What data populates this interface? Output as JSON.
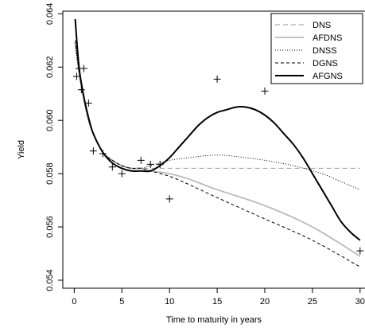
{
  "chart_data": {
    "type": "line",
    "title": "",
    "xlabel": "Time to maturity in years",
    "ylabel": "Yield",
    "xlim": [
      -1.2,
      30.6
    ],
    "ylim": [
      0.0537,
      0.0641
    ],
    "x_ticks": [
      0,
      5,
      10,
      15,
      20,
      25,
      30
    ],
    "x_tick_labels": [
      "0",
      "5",
      "10",
      "15",
      "20",
      "25",
      "30"
    ],
    "y_ticks": [
      0.054,
      0.056,
      0.058,
      0.06,
      0.062,
      0.064
    ],
    "y_tick_labels": [
      "0.054",
      "0.056",
      "0.058",
      "0.060",
      "0.062",
      "0.064"
    ],
    "grid": false,
    "legend_position": "top-right",
    "observed": {
      "marker": "plus",
      "points": [
        [
          0.25,
          0.06165
        ],
        [
          0.5,
          0.06195
        ],
        [
          0.75,
          0.06115
        ],
        [
          1.0,
          0.06195
        ],
        [
          1.5,
          0.06065
        ],
        [
          2.0,
          0.05885
        ],
        [
          3.0,
          0.05875
        ],
        [
          4.0,
          0.05825
        ],
        [
          5.0,
          0.058
        ],
        [
          7.0,
          0.0585
        ],
        [
          8.0,
          0.05835
        ],
        [
          9.0,
          0.05835
        ],
        [
          10.0,
          0.05705
        ],
        [
          15.0,
          0.06155
        ],
        [
          20.0,
          0.0611
        ],
        [
          30.0,
          0.0551
        ]
      ]
    },
    "series": [
      {
        "name": "DNS",
        "color": "#aaaaaa",
        "dash": "6,4",
        "width": 1.2,
        "x": [
          0.1,
          0.5,
          1,
          1.5,
          2,
          3,
          4,
          5,
          6,
          7,
          8,
          10,
          12,
          15,
          20,
          25,
          30
        ],
        "y": [
          0.0629,
          0.0618,
          0.0608,
          0.06,
          0.0595,
          0.0588,
          0.0585,
          0.0583,
          0.0582,
          0.0582,
          0.0582,
          0.0582,
          0.0582,
          0.0582,
          0.0582,
          0.0582,
          0.0582
        ]
      },
      {
        "name": "AFDNS",
        "color": "#bbbbbb",
        "dash": "",
        "width": 1.8,
        "x": [
          0.1,
          0.5,
          1,
          1.5,
          2,
          3,
          4,
          5,
          6,
          7,
          8,
          10,
          12,
          15,
          20,
          25,
          30
        ],
        "y": [
          0.0629,
          0.0618,
          0.0608,
          0.06,
          0.0595,
          0.0588,
          0.0585,
          0.0583,
          0.0582,
          0.0582,
          0.0581,
          0.058,
          0.0578,
          0.0574,
          0.0568,
          0.056,
          0.0549
        ]
      },
      {
        "name": "DNSS",
        "color": "#000000",
        "dash": "1,2",
        "width": 1.0,
        "x": [
          0.1,
          0.5,
          1,
          1.5,
          2,
          3,
          4,
          5,
          6,
          7,
          8,
          10,
          12,
          15,
          18,
          20,
          23,
          26,
          28,
          30
        ],
        "y": [
          0.0629,
          0.0618,
          0.0608,
          0.06,
          0.0595,
          0.0588,
          0.0585,
          0.0583,
          0.0582,
          0.0582,
          0.0583,
          0.0585,
          0.0586,
          0.0587,
          0.0586,
          0.0585,
          0.0583,
          0.058,
          0.0577,
          0.0574
        ]
      },
      {
        "name": "DGNS",
        "color": "#000000",
        "dash": "4,3",
        "width": 1.0,
        "x": [
          0.1,
          0.5,
          1,
          1.5,
          2,
          3,
          4,
          5,
          6,
          7,
          8,
          10,
          12,
          15,
          20,
          25,
          30
        ],
        "y": [
          0.063,
          0.0619,
          0.0609,
          0.0601,
          0.0595,
          0.0588,
          0.0585,
          0.0583,
          0.0582,
          0.0582,
          0.0581,
          0.0579,
          0.0576,
          0.0571,
          0.0563,
          0.0555,
          0.0545
        ]
      },
      {
        "name": "AFGNS",
        "color": "#000000",
        "dash": "",
        "width": 2.0,
        "x": [
          0.1,
          0.5,
          1,
          1.5,
          2,
          3,
          4,
          5,
          6,
          7,
          8,
          9,
          10,
          11,
          12,
          13,
          14,
          15,
          16,
          17,
          18,
          19,
          20,
          21,
          22,
          23,
          24,
          25,
          26,
          27,
          28,
          29,
          30
        ],
        "y": [
          0.0638,
          0.062,
          0.0609,
          0.0601,
          0.0595,
          0.0588,
          0.0584,
          0.0582,
          0.0581,
          0.0581,
          0.0581,
          0.0583,
          0.0586,
          0.059,
          0.0594,
          0.0598,
          0.0601,
          0.0603,
          0.0604,
          0.0605,
          0.0605,
          0.0604,
          0.0602,
          0.0599,
          0.0595,
          0.0591,
          0.0586,
          0.058,
          0.0574,
          0.0568,
          0.0562,
          0.0558,
          0.0555
        ]
      }
    ]
  }
}
